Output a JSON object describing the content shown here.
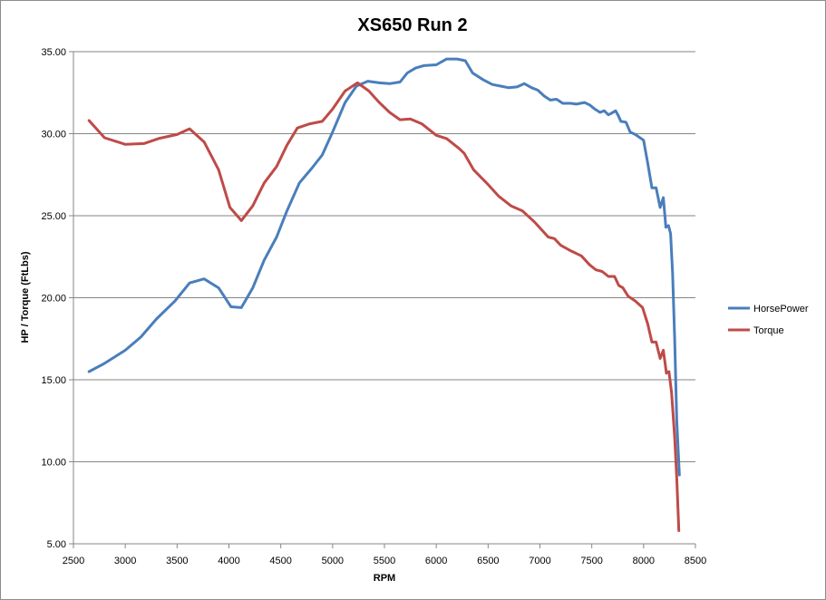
{
  "chart_data": {
    "type": "line",
    "title": "XS650 Run 2",
    "xlabel": "RPM",
    "ylabel": "HP / Torque (FtLbs)",
    "xlim": [
      2500,
      8500
    ],
    "ylim": [
      5,
      35
    ],
    "x_ticks": [
      "2500",
      "3000",
      "3500",
      "4000",
      "4500",
      "5000",
      "5500",
      "6000",
      "6500",
      "7000",
      "7500",
      "8000",
      "8500"
    ],
    "y_ticks": [
      "5.00",
      "10.00",
      "15.00",
      "20.00",
      "25.00",
      "30.00",
      "35.00"
    ],
    "grid": "horizontal",
    "legend_position": "right",
    "series": [
      {
        "name": "HorsePower",
        "color": "#4a7ebb",
        "points": [
          [
            2650,
            15.5
          ],
          [
            2800,
            16.0
          ],
          [
            3000,
            16.8
          ],
          [
            3150,
            17.6
          ],
          [
            3300,
            18.7
          ],
          [
            3480,
            19.8
          ],
          [
            3620,
            20.9
          ],
          [
            3760,
            21.15
          ],
          [
            3900,
            20.6
          ],
          [
            4020,
            19.45
          ],
          [
            4120,
            19.4
          ],
          [
            4230,
            20.6
          ],
          [
            4340,
            22.3
          ],
          [
            4460,
            23.7
          ],
          [
            4560,
            25.3
          ],
          [
            4680,
            27.0
          ],
          [
            4800,
            27.9
          ],
          [
            4900,
            28.7
          ],
          [
            5000,
            30.1
          ],
          [
            5120,
            31.9
          ],
          [
            5230,
            32.9
          ],
          [
            5340,
            33.2
          ],
          [
            5450,
            33.1
          ],
          [
            5550,
            33.05
          ],
          [
            5650,
            33.15
          ],
          [
            5720,
            33.7
          ],
          [
            5800,
            34.0
          ],
          [
            5880,
            34.15
          ],
          [
            6000,
            34.2
          ],
          [
            6100,
            34.55
          ],
          [
            6200,
            34.55
          ],
          [
            6280,
            34.45
          ],
          [
            6350,
            33.7
          ],
          [
            6450,
            33.3
          ],
          [
            6540,
            33.0
          ],
          [
            6620,
            32.9
          ],
          [
            6700,
            32.8
          ],
          [
            6780,
            32.85
          ],
          [
            6850,
            33.05
          ],
          [
            6920,
            32.8
          ],
          [
            6980,
            32.65
          ],
          [
            7040,
            32.3
          ],
          [
            7100,
            32.05
          ],
          [
            7160,
            32.1
          ],
          [
            7220,
            31.85
          ],
          [
            7300,
            31.85
          ],
          [
            7350,
            31.8
          ],
          [
            7430,
            31.9
          ],
          [
            7480,
            31.75
          ],
          [
            7530,
            31.5
          ],
          [
            7580,
            31.3
          ],
          [
            7620,
            31.4
          ],
          [
            7660,
            31.15
          ],
          [
            7690,
            31.25
          ],
          [
            7730,
            31.4
          ],
          [
            7760,
            31.05
          ],
          [
            7780,
            30.75
          ],
          [
            7830,
            30.7
          ],
          [
            7870,
            30.1
          ],
          [
            7920,
            29.95
          ],
          [
            8000,
            29.6
          ],
          [
            8040,
            28.2
          ],
          [
            8080,
            26.7
          ],
          [
            8120,
            26.7
          ],
          [
            8160,
            25.5
          ],
          [
            8190,
            26.1
          ],
          [
            8215,
            24.3
          ],
          [
            8240,
            24.4
          ],
          [
            8260,
            23.9
          ],
          [
            8280,
            21.5
          ],
          [
            8300,
            17.5
          ],
          [
            8320,
            12.5
          ],
          [
            8345,
            9.2
          ]
        ]
      },
      {
        "name": "Torque",
        "color": "#be4b48",
        "points": [
          [
            2650,
            30.8
          ],
          [
            2800,
            29.75
          ],
          [
            3000,
            29.35
          ],
          [
            3180,
            29.4
          ],
          [
            3320,
            29.7
          ],
          [
            3500,
            29.95
          ],
          [
            3620,
            30.3
          ],
          [
            3760,
            29.5
          ],
          [
            3900,
            27.8
          ],
          [
            4010,
            25.5
          ],
          [
            4120,
            24.7
          ],
          [
            4230,
            25.6
          ],
          [
            4340,
            27.0
          ],
          [
            4460,
            28.0
          ],
          [
            4560,
            29.3
          ],
          [
            4660,
            30.35
          ],
          [
            4780,
            30.6
          ],
          [
            4900,
            30.75
          ],
          [
            5000,
            31.5
          ],
          [
            5120,
            32.6
          ],
          [
            5240,
            33.1
          ],
          [
            5350,
            32.6
          ],
          [
            5450,
            31.9
          ],
          [
            5550,
            31.3
          ],
          [
            5650,
            30.85
          ],
          [
            5750,
            30.9
          ],
          [
            5860,
            30.6
          ],
          [
            6000,
            29.9
          ],
          [
            6100,
            29.7
          ],
          [
            6220,
            29.1
          ],
          [
            6270,
            28.8
          ],
          [
            6360,
            27.8
          ],
          [
            6500,
            26.9
          ],
          [
            6600,
            26.2
          ],
          [
            6720,
            25.6
          ],
          [
            6830,
            25.3
          ],
          [
            6950,
            24.6
          ],
          [
            7080,
            23.7
          ],
          [
            7140,
            23.6
          ],
          [
            7200,
            23.2
          ],
          [
            7300,
            22.85
          ],
          [
            7400,
            22.55
          ],
          [
            7480,
            22.0
          ],
          [
            7540,
            21.7
          ],
          [
            7600,
            21.6
          ],
          [
            7660,
            21.3
          ],
          [
            7720,
            21.3
          ],
          [
            7760,
            20.75
          ],
          [
            7800,
            20.6
          ],
          [
            7850,
            20.1
          ],
          [
            7920,
            19.8
          ],
          [
            7990,
            19.4
          ],
          [
            8040,
            18.4
          ],
          [
            8080,
            17.3
          ],
          [
            8120,
            17.3
          ],
          [
            8160,
            16.3
          ],
          [
            8190,
            16.8
          ],
          [
            8220,
            15.4
          ],
          [
            8245,
            15.5
          ],
          [
            8270,
            14.2
          ],
          [
            8300,
            11.5
          ],
          [
            8320,
            9.0
          ],
          [
            8340,
            5.8
          ]
        ]
      }
    ]
  }
}
